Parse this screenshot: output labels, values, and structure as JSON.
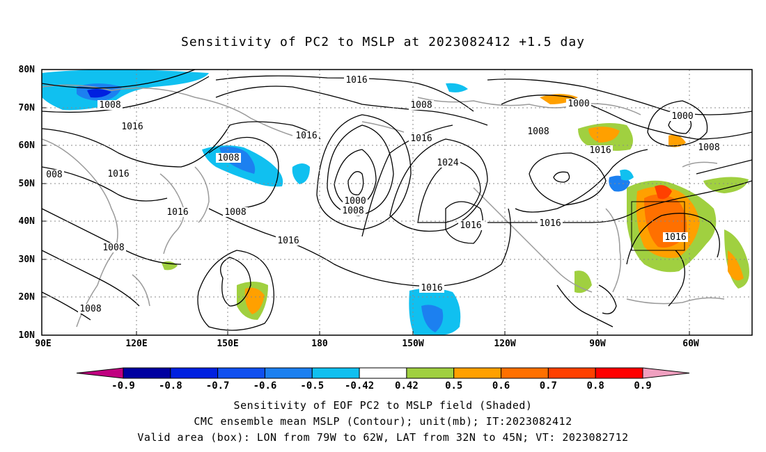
{
  "title": "Sensitivity of PC2 to MSLP at 2023082412 +1.5 day",
  "lat_labels": [
    "80N",
    "70N",
    "60N",
    "50N",
    "40N",
    "30N",
    "20N",
    "10N"
  ],
  "lon_labels": [
    "90E",
    "120E",
    "150E",
    "180",
    "150W",
    "120W",
    "90W",
    "60W"
  ],
  "contour_labels": [
    {
      "text": "1016"
    },
    {
      "text": "1008"
    },
    {
      "text": "1016"
    },
    {
      "text": "1016"
    },
    {
      "text": "1008"
    },
    {
      "text": "008"
    },
    {
      "text": "1016"
    },
    {
      "text": "1016"
    },
    {
      "text": "1008"
    },
    {
      "text": "1016"
    },
    {
      "text": "1016"
    },
    {
      "text": "1008"
    },
    {
      "text": "1016"
    },
    {
      "text": "1024"
    },
    {
      "text": "1000"
    },
    {
      "text": "1008"
    },
    {
      "text": "1016"
    },
    {
      "text": "1016"
    },
    {
      "text": "1000"
    },
    {
      "text": "1008"
    },
    {
      "text": "1016"
    },
    {
      "text": "1000"
    },
    {
      "text": "1008"
    },
    {
      "text": "1016"
    },
    {
      "text": "1016"
    },
    {
      "text": "1008"
    },
    {
      "text": "1008"
    }
  ],
  "colorbar": {
    "labels": [
      "-0.9",
      "-0.8",
      "-0.7",
      "-0.6",
      "-0.5",
      "-0.42",
      "0.42",
      "0.5",
      "0.6",
      "0.7",
      "0.8",
      "0.9"
    ],
    "colors": [
      "#c00080",
      "#0000a0",
      "#0020e0",
      "#1050f0",
      "#1c80f0",
      "#10c0f0",
      "#ffffff",
      "#a0d040",
      "#ffa000",
      "#ff7000",
      "#ff4000",
      "#ff0000",
      "#f0a0c0"
    ]
  },
  "footer": {
    "line1": "Sensitivity of EOF PC2 to MSLP field (Shaded)",
    "line2": "CMC ensemble mean MSLP (Contour); unit(mb); IT:2023082412",
    "line3": "Valid area (box): LON from 79W to 62W, LAT from 32N to 45N; VT: 2023082712"
  }
}
